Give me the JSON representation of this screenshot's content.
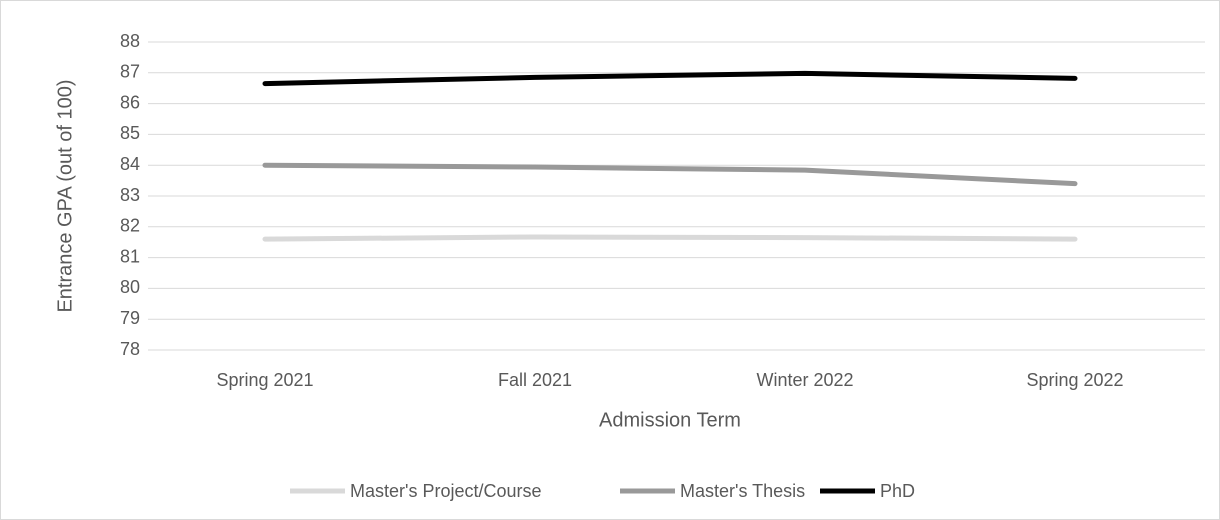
{
  "chart_data": {
    "type": "line",
    "categories": [
      "Spring 2021",
      "Fall 2021",
      "Winter 2022",
      "Spring 2022"
    ],
    "series": [
      {
        "name": "Master's Project/Course",
        "color": "#d9d9d9",
        "values": [
          81.6,
          81.67,
          81.65,
          81.6
        ]
      },
      {
        "name": "Master's Thesis",
        "color": "#999999",
        "values": [
          84.0,
          83.94,
          83.84,
          83.4
        ]
      },
      {
        "name": "PhD",
        "color": "#000000",
        "values": [
          86.65,
          86.85,
          86.98,
          86.82
        ]
      }
    ],
    "xlabel": "Admission Term",
    "ylabel": "Entrance GPA (out of 100)",
    "ylim": [
      78,
      88
    ],
    "yticks": [
      78,
      79,
      80,
      81,
      82,
      83,
      84,
      85,
      86,
      87,
      88
    ],
    "grid": true,
    "legend": "bottom"
  }
}
